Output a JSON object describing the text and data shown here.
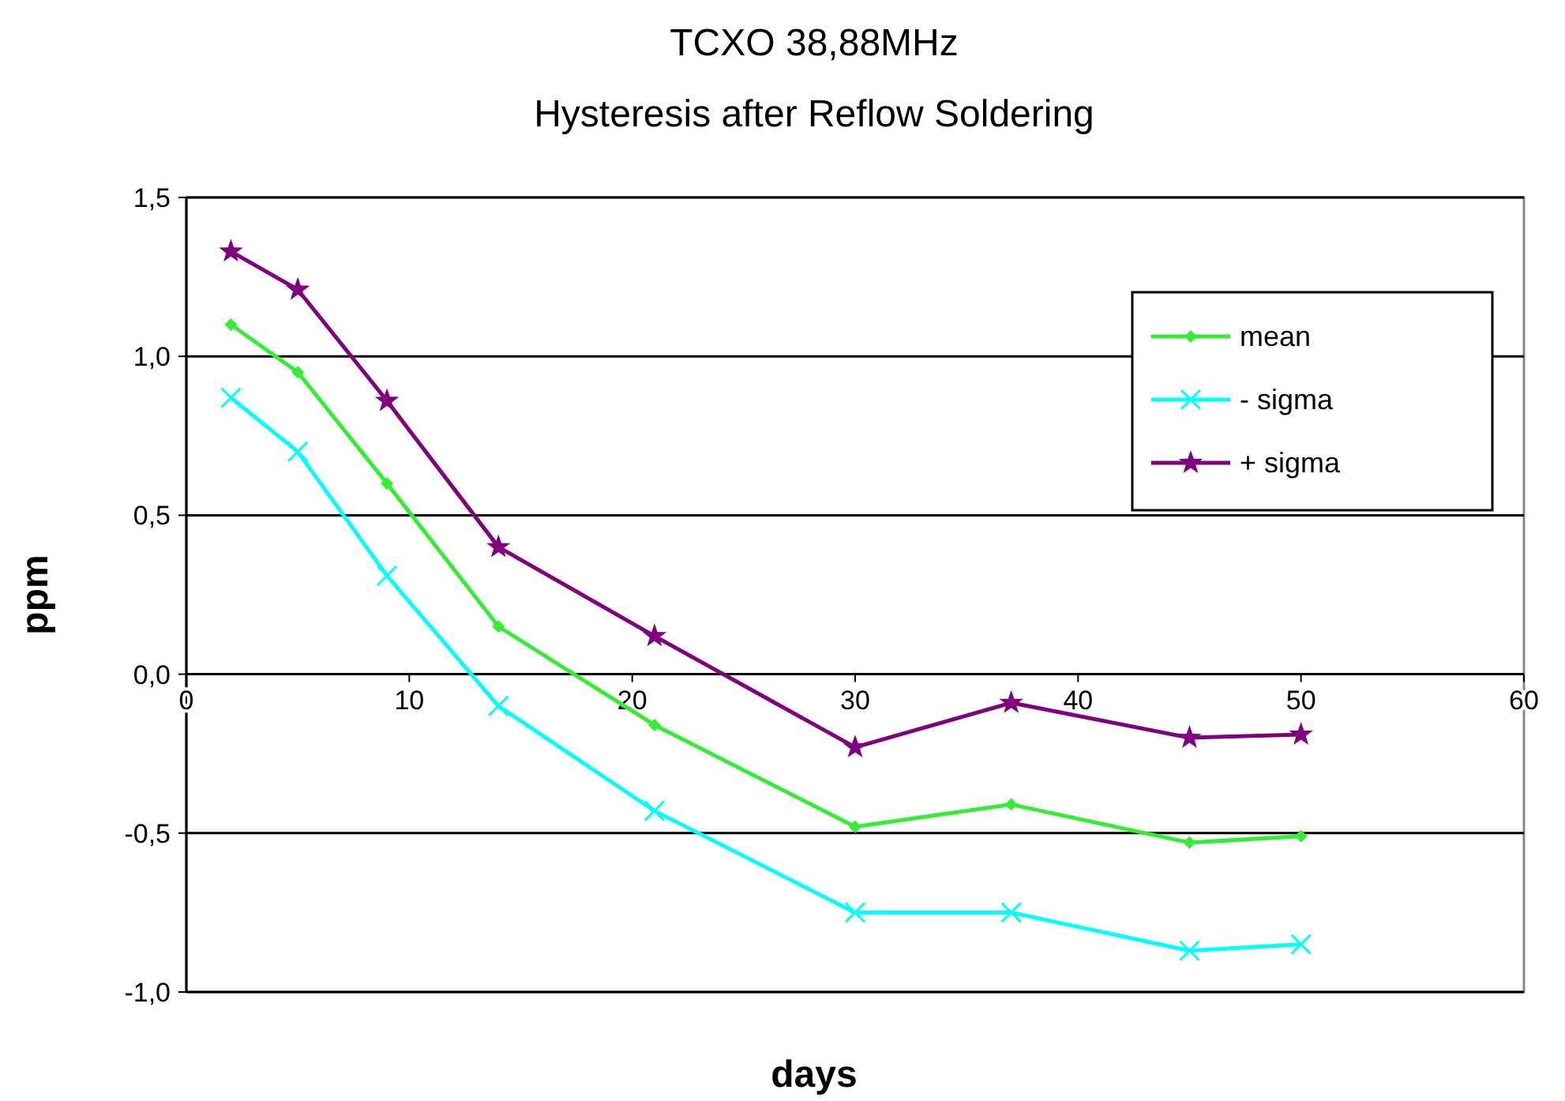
{
  "chart_data": {
    "type": "line",
    "title": "TCXO 38,88MHz",
    "subtitle": "Hysteresis after Reflow Soldering",
    "xlabel": "days",
    "ylabel": "ppm",
    "x": [
      2,
      5,
      9,
      14,
      21,
      30,
      37,
      45,
      50
    ],
    "series": [
      {
        "name": "mean",
        "color": "#33ee33",
        "marker": "diamond",
        "values": [
          1.1,
          0.95,
          0.6,
          0.15,
          -0.16,
          -0.48,
          -0.41,
          -0.53,
          -0.51
        ]
      },
      {
        "name": "- sigma",
        "color": "#00ffff",
        "marker": "cross",
        "values": [
          0.87,
          0.7,
          0.31,
          -0.1,
          -0.43,
          -0.75,
          -0.75,
          -0.87,
          -0.85
        ]
      },
      {
        "name": "+ sigma",
        "color": "#800080",
        "marker": "star",
        "values": [
          1.33,
          1.21,
          0.86,
          0.4,
          0.12,
          -0.23,
          -0.09,
          -0.2,
          -0.19
        ]
      }
    ],
    "xlim": [
      0,
      60
    ],
    "xticks": [
      0,
      10,
      20,
      30,
      40,
      50,
      60
    ],
    "ylim": [
      -1,
      1.5
    ],
    "yticks": [
      {
        "value": -1,
        "label": "-1,0"
      },
      {
        "value": -0.5,
        "label": "-0,5"
      },
      {
        "value": 0,
        "label": "0,0"
      },
      {
        "value": 0.5,
        "label": "0,5"
      },
      {
        "value": 1,
        "label": "1,0"
      },
      {
        "value": 1.5,
        "label": "1,5"
      }
    ],
    "grid": "y",
    "legend": "top right",
    "line_style": "solid"
  }
}
